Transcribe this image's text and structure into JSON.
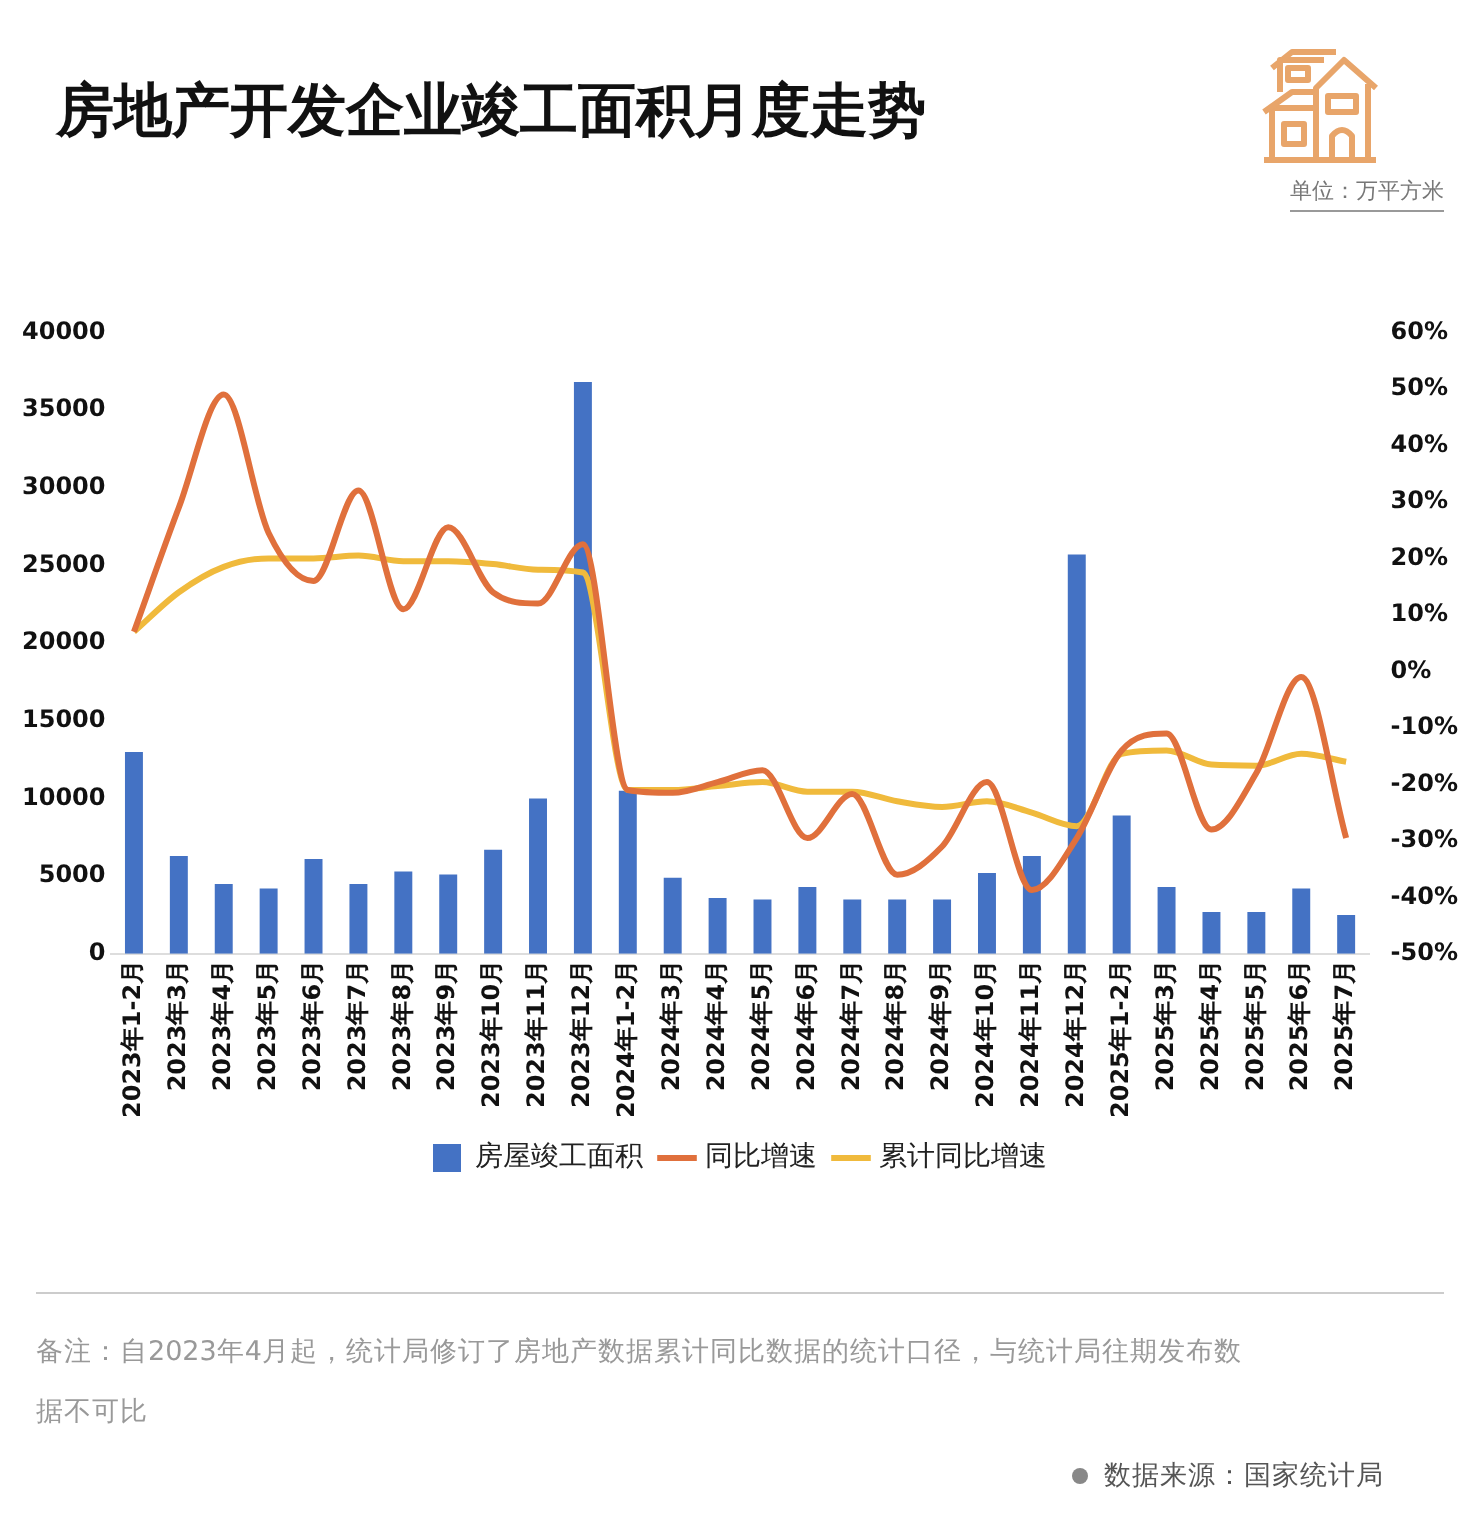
{
  "chart_data": {
    "type": "bar",
    "title": "房地产开发企业竣工面积月度走势",
    "categories": [
      "2023年1-2月",
      "2023年3月",
      "2023年4月",
      "2023年5月",
      "2023年6月",
      "2023年7月",
      "2023年8月",
      "2023年9月",
      "2023年10月",
      "2023年11月",
      "2023年12月",
      "2024年1-2月",
      "2024年3月",
      "2024年4月",
      "2024年5月",
      "2024年6月",
      "2024年7月",
      "2024年8月",
      "2024年9月",
      "2024年10月",
      "2024年11月",
      "2024年12月",
      "2025年1-2月",
      "2025年3月",
      "2025年4月",
      "2025年5月",
      "2025年6月",
      "2025年7月"
    ],
    "series": [
      {
        "name": "房屋竣工面积",
        "color": "#4472c4",
        "values": [
          13000,
          6300,
          4500,
          4200,
          6100,
          4500,
          5300,
          5100,
          6700,
          10000,
          36800,
          10500,
          4900,
          3600,
          3500,
          4300,
          3500,
          3500,
          3500,
          5200,
          6300,
          25700,
          8900,
          4300,
          2700,
          2700,
          4200,
          2500
        ]
      },
      {
        "name": "同比增速",
        "type": "line",
        "axis": "y2",
        "color": "#e0703c",
        "values": [
          7,
          29,
          49,
          24.5,
          16,
          32,
          11,
          25.5,
          14,
          12,
          22.5,
          -21,
          -21.5,
          -19.6,
          -17.5,
          -29.5,
          -21.7,
          -36,
          -31,
          -19.6,
          -38.7,
          -29.5,
          -14,
          -11,
          -28,
          -18,
          -1,
          -29.5
        ]
      },
      {
        "name": "累计同比增速",
        "type": "line",
        "axis": "y2",
        "color": "#f0ba3c",
        "values": [
          7,
          14,
          18.5,
          20,
          20,
          20.5,
          19.5,
          19.5,
          19,
          18,
          17.5,
          -21,
          -21,
          -20.3,
          -19.6,
          -21.3,
          -21.3,
          -23,
          -24,
          -23,
          -25,
          -27.4,
          -14.6,
          -14,
          -16.5,
          -16.7,
          -14.6,
          -16
        ]
      }
    ],
    "ylim": [
      0,
      40000
    ],
    "yticks": [
      0,
      5000,
      10000,
      15000,
      20000,
      25000,
      30000,
      35000,
      40000
    ],
    "y2lim": [
      -50,
      60
    ],
    "y2ticks": [
      {
        "value": -50,
        "label": "-50%"
      },
      {
        "value": -40,
        "label": "-40%"
      },
      {
        "value": -30,
        "label": "-30%"
      },
      {
        "value": -20,
        "label": "-20%"
      },
      {
        "value": -10,
        "label": "-10%"
      },
      {
        "value": 0,
        "label": "0%"
      },
      {
        "value": 10,
        "label": "10%"
      },
      {
        "value": 20,
        "label": "20%"
      },
      {
        "value": 30,
        "label": "30%"
      },
      {
        "value": 40,
        "label": "40%"
      },
      {
        "value": 50,
        "label": "50%"
      },
      {
        "value": 60,
        "label": "60%"
      }
    ],
    "grid": false,
    "legend": "bottom",
    "marker": "none",
    "annotations": [
      "单位：万平方米",
      "备注：自2023年4月起，统计局修订了房地产数据累计同比数据的统计口径，与统计局往期发布数据不可比",
      "数据来源：国家统计局"
    ]
  }
}
